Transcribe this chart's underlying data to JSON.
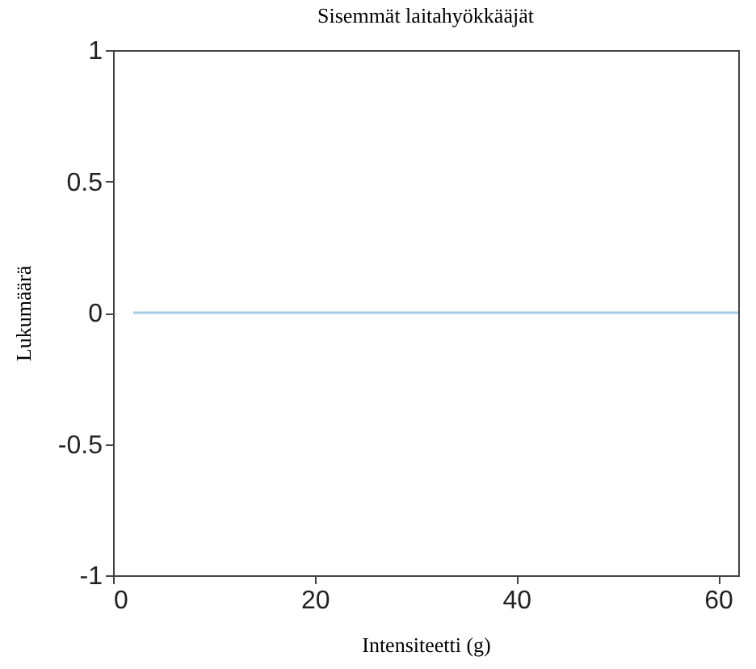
{
  "chart_data": {
    "type": "line",
    "title": "Sisemmät laitahyökkääjät",
    "xlabel": "Intensiteetti (g)",
    "ylabel": "Lukumäärä",
    "x": [
      2,
      62
    ],
    "series": [
      {
        "color": "#a6cbe6",
        "values": [
          0,
          0
        ]
      }
    ],
    "xlim": [
      0,
      62
    ],
    "xticks": [
      0,
      20,
      40,
      60
    ],
    "ylim": [
      -1,
      1
    ],
    "yticks": [
      -1,
      -0.5,
      0,
      0.5,
      1
    ],
    "grid": false
  }
}
